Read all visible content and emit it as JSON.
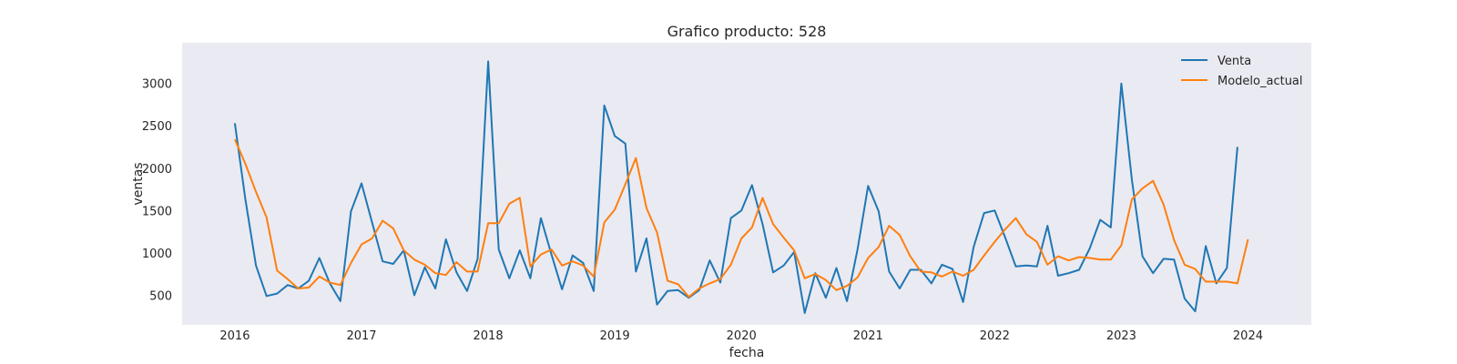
{
  "chart_data": {
    "type": "line",
    "title": "Grafico producto: 528",
    "xlabel": "fecha",
    "ylabel": "ventas",
    "x_ticks": [
      "2016",
      "2017",
      "2018",
      "2019",
      "2020",
      "2021",
      "2022",
      "2023",
      "2024"
    ],
    "y_ticks": [
      500,
      1000,
      1500,
      2000,
      2500,
      3000
    ],
    "xlim": [
      "2015-08",
      "2024-07"
    ],
    "ylim": [
      150,
      3480
    ],
    "grid": false,
    "legend_position": "top-right",
    "x_start": "2016-01",
    "x_step": "month",
    "series": [
      {
        "name": "Venta",
        "color": "#1f77b4",
        "values": [
          2530,
          1630,
          850,
          490,
          520,
          620,
          580,
          670,
          940,
          640,
          430,
          1490,
          1820,
          1360,
          900,
          870,
          1030,
          500,
          830,
          580,
          1160,
          770,
          550,
          930,
          3260,
          1040,
          700,
          1030,
          700,
          1410,
          980,
          570,
          970,
          880,
          550,
          2740,
          2380,
          2290,
          780,
          1170,
          390,
          550,
          560,
          470,
          560,
          910,
          650,
          1410,
          1500,
          1800,
          1340,
          770,
          850,
          1010,
          290,
          760,
          470,
          820,
          430,
          1040,
          1790,
          1490,
          780,
          580,
          800,
          800,
          640,
          860,
          810,
          420,
          1070,
          1470,
          1500,
          1180,
          840,
          850,
          840,
          1320,
          730,
          760,
          800,
          1050,
          1390,
          1300,
          3000,
          1860,
          960,
          760,
          930,
          920,
          460,
          310,
          1080,
          640,
          820,
          2250
        ]
      },
      {
        "name": "Modelo_actual",
        "color": "#ff7f0e",
        "values": [
          2340,
          2050,
          1720,
          1420,
          790,
          690,
          580,
          590,
          720,
          650,
          620,
          880,
          1100,
          1170,
          1380,
          1290,
          1030,
          920,
          860,
          760,
          740,
          890,
          780,
          780,
          1350,
          1350,
          1580,
          1650,
          840,
          980,
          1040,
          850,
          900,
          850,
          720,
          1360,
          1510,
          1810,
          2120,
          1530,
          1240,
          670,
          630,
          480,
          580,
          640,
          690,
          860,
          1170,
          1300,
          1650,
          1340,
          1180,
          1030,
          700,
          750,
          680,
          560,
          610,
          710,
          940,
          1070,
          1320,
          1210,
          960,
          780,
          770,
          720,
          780,
          730,
          800,
          970,
          1130,
          1280,
          1410,
          1220,
          1130,
          860,
          960,
          910,
          950,
          940,
          920,
          920,
          1090,
          1630,
          1760,
          1850,
          1570,
          1150,
          860,
          810,
          660,
          660,
          660,
          640,
          1160
        ]
      }
    ]
  }
}
